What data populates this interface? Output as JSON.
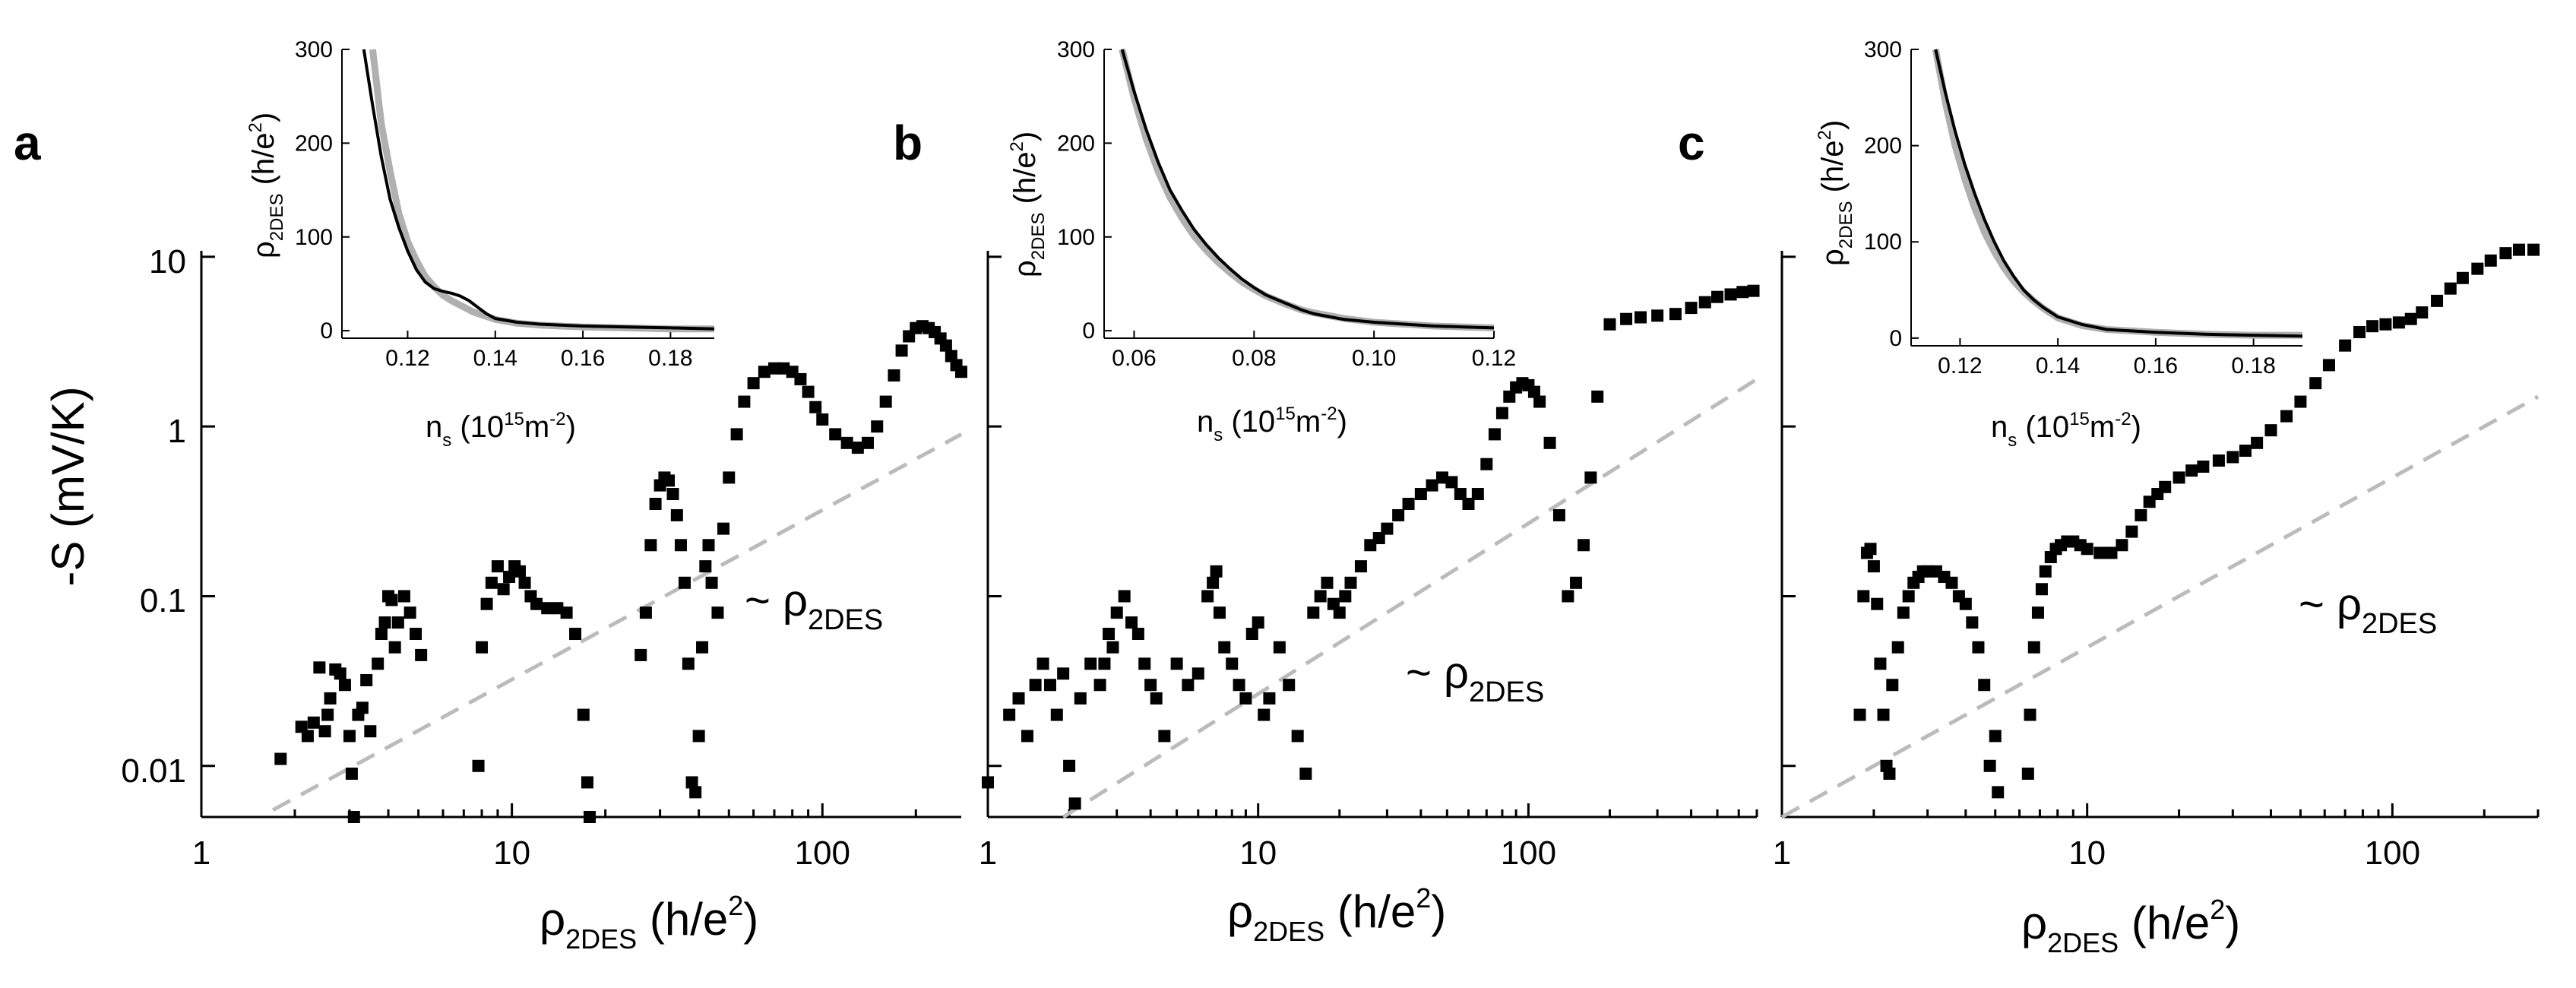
{
  "chart_data": [
    {
      "panel": "a",
      "type": "scatter",
      "xscale": "log",
      "yscale": "log",
      "xlim": [
        1,
        280
      ],
      "ylim": [
        0.005,
        15
      ],
      "xlabel": "ρ2DES (h/e²)",
      "ylabel": "-S (mV/K)",
      "xticks": [
        "1",
        "10",
        "100"
      ],
      "yticks": [
        "0.01",
        "0.1",
        "1",
        "10"
      ],
      "series": [
        {
          "name": "-S data",
          "marker": "square",
          "color": "#000000",
          "x": [
            1.8,
            2.1,
            2.2,
            2.3,
            2.4,
            2.5,
            2.55,
            2.6,
            2.7,
            2.8,
            2.9,
            3.0,
            3.05,
            3.1,
            3.2,
            3.3,
            3.4,
            3.5,
            3.7,
            3.8,
            3.9,
            4.0,
            4.1,
            4.2,
            4.3,
            4.5,
            4.7,
            4.9,
            5.1,
            7.8,
            8.0,
            8.3,
            8.6,
            9.0,
            9.4,
            9.8,
            10.2,
            10.6,
            11.0,
            11.5,
            12.0,
            13.0,
            14.0,
            15.0,
            16.0,
            17.0,
            17.5,
            17.8,
            26,
            27,
            28,
            29,
            30,
            31,
            32,
            33,
            34,
            35,
            36,
            37,
            38,
            39,
            40,
            41,
            42,
            43,
            44,
            46,
            48,
            50,
            53,
            56,
            60,
            65,
            70,
            75,
            80,
            85,
            90,
            95,
            100,
            110,
            120,
            130,
            140,
            150,
            160,
            170,
            180,
            190,
            200,
            210,
            220,
            230,
            240,
            250,
            260,
            270,
            280
          ],
          "y": [
            0.011,
            0.017,
            0.015,
            0.018,
            0.038,
            0.016,
            0.02,
            0.025,
            0.037,
            0.035,
            0.03,
            0.015,
            0.009,
            0.005,
            0.02,
            0.022,
            0.032,
            0.016,
            0.04,
            0.06,
            0.07,
            0.1,
            0.095,
            0.05,
            0.07,
            0.1,
            0.08,
            0.06,
            0.045,
            0.01,
            0.05,
            0.09,
            0.12,
            0.15,
            0.11,
            0.13,
            0.15,
            0.14,
            0.12,
            0.1,
            0.09,
            0.085,
            0.085,
            0.08,
            0.06,
            0.02,
            0.008,
            0.005,
            0.045,
            0.08,
            0.2,
            0.35,
            0.45,
            0.5,
            0.48,
            0.4,
            0.3,
            0.2,
            0.12,
            0.04,
            0.008,
            0.007,
            0.015,
            0.05,
            0.15,
            0.2,
            0.12,
            0.08,
            0.25,
            0.5,
            0.9,
            1.4,
            1.8,
            2.1,
            2.2,
            2.2,
            2.1,
            1.9,
            1.6,
            1.3,
            1.1,
            0.9,
            0.8,
            0.75,
            0.8,
            1.0,
            1.4,
            2.0,
            2.8,
            3.4,
            3.8,
            3.9,
            3.8,
            3.6,
            3.3,
            3.0,
            2.6,
            2.3,
            2.1
          ]
        },
        {
          "name": "~ ρ2DES",
          "style": "dashed",
          "color": "#bbbbbb",
          "x": [
            1.7,
            280
          ],
          "y": [
            0.0055,
            0.9
          ]
        }
      ],
      "annotation": "~ ρ2DES",
      "inset": {
        "xlabel": "ns (10¹⁵m⁻²)",
        "ylabel": "ρ2DES (h/e²)",
        "xlim": [
          0.105,
          0.19
        ],
        "ylim": [
          -8,
          300
        ],
        "xticks": [
          "0.12",
          "0.14",
          "0.16",
          "0.18"
        ],
        "yticks": [
          "0",
          "100",
          "200",
          "300"
        ],
        "data": {
          "x": [
            0.11,
            0.112,
            0.114,
            0.116,
            0.118,
            0.12,
            0.122,
            0.124,
            0.126,
            0.128,
            0.13,
            0.132,
            0.134,
            0.136,
            0.138,
            0.14,
            0.145,
            0.15,
            0.16,
            0.17,
            0.18,
            0.19
          ],
          "y": [
            300,
            240,
            185,
            140,
            110,
            85,
            65,
            52,
            45,
            42,
            40,
            37,
            32,
            25,
            18,
            13,
            9,
            7,
            5,
            4,
            3,
            2
          ]
        },
        "fit": {
          "x": [
            0.112,
            0.114,
            0.116,
            0.118,
            0.12,
            0.122,
            0.124,
            0.126,
            0.128,
            0.13,
            0.135,
            0.14,
            0.145,
            0.15,
            0.16,
            0.17,
            0.18,
            0.19
          ],
          "y": [
            300,
            220,
            170,
            125,
            95,
            75,
            58,
            47,
            38,
            32,
            20,
            12,
            8,
            6,
            4,
            3,
            2,
            2
          ]
        }
      }
    },
    {
      "panel": "b",
      "type": "scatter",
      "xscale": "log",
      "yscale": "log",
      "xlim": [
        1,
        700
      ],
      "ylim": [
        0.005,
        15
      ],
      "xlabel": "ρ2DES (h/e²)",
      "ylabel": "",
      "xticks": [
        "1",
        "10",
        "100"
      ],
      "yticks": [],
      "series": [
        {
          "name": "-S data",
          "marker": "square",
          "color": "#000000",
          "x": [
            1.0,
            1.2,
            1.3,
            1.4,
            1.5,
            1.6,
            1.7,
            1.8,
            1.9,
            2.0,
            2.1,
            2.2,
            2.4,
            2.6,
            2.7,
            2.8,
            2.9,
            3.0,
            3.2,
            3.4,
            3.6,
            3.8,
            4.0,
            4.2,
            4.5,
            5.0,
            5.5,
            6.0,
            6.5,
            6.8,
            7.0,
            7.2,
            7.5,
            8.0,
            8.5,
            9.0,
            9.5,
            10.0,
            10.5,
            11.0,
            12.0,
            13.0,
            14.0,
            15.0,
            16.0,
            17.0,
            18.0,
            19.0,
            20.0,
            21.0,
            22.0,
            24,
            26,
            28,
            30,
            33,
            36,
            40,
            44,
            48,
            52,
            56,
            60,
            65,
            70,
            75,
            80,
            85,
            90,
            95,
            100,
            105,
            110,
            120,
            130,
            140,
            150,
            160,
            170,
            180,
            200,
            230,
            260,
            300,
            350,
            400,
            450,
            500,
            560,
            620,
            680
          ],
          "y": [
            0.008,
            0.02,
            0.025,
            0.015,
            0.03,
            0.04,
            0.03,
            0.02,
            0.035,
            0.01,
            0.006,
            0.025,
            0.04,
            0.03,
            0.04,
            0.06,
            0.05,
            0.08,
            0.1,
            0.07,
            0.06,
            0.04,
            0.03,
            0.025,
            0.015,
            0.04,
            0.03,
            0.035,
            0.1,
            0.12,
            0.14,
            0.08,
            0.05,
            0.04,
            0.03,
            0.025,
            0.06,
            0.07,
            0.02,
            0.025,
            0.05,
            0.03,
            0.015,
            0.009,
            0.08,
            0.1,
            0.12,
            0.09,
            0.08,
            0.1,
            0.12,
            0.15,
            0.2,
            0.22,
            0.25,
            0.3,
            0.35,
            0.4,
            0.45,
            0.5,
            0.47,
            0.4,
            0.35,
            0.4,
            0.6,
            0.9,
            1.2,
            1.5,
            1.7,
            1.8,
            1.75,
            1.6,
            1.4,
            0.8,
            0.3,
            0.1,
            0.12,
            0.2,
            0.5,
            1.5,
            4.0,
            4.3,
            4.4,
            4.5,
            4.6,
            5.0,
            5.4,
            5.8,
            6.0,
            6.2,
            6.3
          ]
        },
        {
          "name": "~ ρ2DES",
          "style": "dashed",
          "color": "#bbbbbb",
          "x": [
            1.9,
            700
          ],
          "y": [
            0.005,
            1.9
          ]
        }
      ],
      "annotation": "~ ρ2DES",
      "inset": {
        "xlabel": "ns (10¹⁵m⁻²)",
        "ylabel": "ρ2DES (h/e²)",
        "xlim": [
          0.055,
          0.12
        ],
        "ylim": [
          -8,
          300
        ],
        "xticks": [
          "0.06",
          "0.08",
          "0.10",
          "0.12"
        ],
        "yticks": [
          "0",
          "100",
          "200",
          "300"
        ],
        "data": {
          "x": [
            0.058,
            0.06,
            0.062,
            0.064,
            0.066,
            0.068,
            0.07,
            0.072,
            0.074,
            0.076,
            0.078,
            0.08,
            0.082,
            0.085,
            0.088,
            0.09,
            0.095,
            0.1,
            0.105,
            0.11,
            0.115,
            0.12
          ],
          "y": [
            300,
            255,
            215,
            180,
            150,
            128,
            108,
            92,
            78,
            66,
            55,
            46,
            38,
            30,
            22,
            18,
            12,
            9,
            7,
            5,
            4,
            3
          ]
        },
        "fit": {
          "x": [
            0.058,
            0.06,
            0.062,
            0.064,
            0.066,
            0.068,
            0.07,
            0.072,
            0.074,
            0.076,
            0.078,
            0.08,
            0.082,
            0.085,
            0.088,
            0.09,
            0.095,
            0.1,
            0.105,
            0.11,
            0.115,
            0.12
          ],
          "y": [
            300,
            248,
            205,
            170,
            142,
            120,
            101,
            86,
            73,
            62,
            52,
            44,
            37,
            29,
            22,
            19,
            13,
            9,
            7,
            5,
            4,
            3
          ]
        }
      }
    },
    {
      "panel": "c",
      "type": "scatter",
      "xscale": "log",
      "yscale": "log",
      "xlim": [
        1,
        300
      ],
      "ylim": [
        0.005,
        15
      ],
      "xlabel": "ρ2DES (h/e²)",
      "ylabel": "",
      "xticks": [
        "1",
        "10",
        "100"
      ],
      "yticks": [],
      "series": [
        {
          "name": "-S data",
          "marker": "square",
          "color": "#000000",
          "x": [
            1.8,
            1.85,
            1.9,
            1.95,
            2.0,
            2.05,
            2.1,
            2.15,
            2.2,
            2.25,
            2.3,
            2.4,
            2.5,
            2.6,
            2.7,
            2.8,
            2.9,
            3.0,
            3.2,
            3.4,
            3.6,
            3.8,
            4.0,
            4.2,
            4.4,
            4.6,
            4.8,
            5.0,
            5.1,
            6.4,
            6.5,
            6.7,
            6.9,
            7.1,
            7.3,
            7.6,
            7.9,
            8.2,
            8.6,
            9.0,
            9.5,
            10.0,
            11.0,
            12.0,
            13.0,
            14.0,
            15.0,
            16.0,
            17.0,
            18.0,
            20,
            22,
            24,
            27,
            30,
            33,
            36,
            40,
            45,
            50,
            56,
            62,
            70,
            78,
            86,
            95,
            105,
            115,
            125,
            140,
            155,
            170,
            190,
            210,
            235,
            260,
            290
          ],
          "y": [
            0.02,
            0.1,
            0.18,
            0.19,
            0.15,
            0.09,
            0.04,
            0.02,
            0.01,
            0.009,
            0.03,
            0.05,
            0.08,
            0.1,
            0.12,
            0.13,
            0.14,
            0.14,
            0.14,
            0.13,
            0.12,
            0.1,
            0.09,
            0.07,
            0.05,
            0.03,
            0.01,
            0.015,
            0.007,
            0.009,
            0.02,
            0.05,
            0.08,
            0.11,
            0.14,
            0.17,
            0.19,
            0.2,
            0.21,
            0.21,
            0.2,
            0.19,
            0.18,
            0.18,
            0.2,
            0.24,
            0.3,
            0.36,
            0.4,
            0.44,
            0.5,
            0.55,
            0.58,
            0.63,
            0.66,
            0.72,
            0.8,
            0.95,
            1.15,
            1.4,
            1.8,
            2.3,
            3.0,
            3.6,
            3.9,
            4.0,
            4.1,
            4.3,
            4.7,
            5.5,
            6.5,
            7.5,
            8.5,
            9.5,
            10.5,
            11.0,
            11.0
          ]
        },
        {
          "name": "~ ρ2DES",
          "style": "dashed",
          "color": "#bbbbbb",
          "x": [
            1.0,
            300
          ],
          "y": [
            0.005,
            1.5
          ]
        }
      ],
      "annotation": "~ ρ2DES",
      "inset": {
        "xlabel": "ns (10¹⁵m⁻²)",
        "ylabel": "ρ2DES (h/e²)",
        "xlim": [
          0.11,
          0.19
        ],
        "ylim": [
          -8,
          300
        ],
        "xticks": [
          "0.12",
          "0.14",
          "0.16",
          "0.18"
        ],
        "yticks": [
          "0",
          "100",
          "200",
          "300"
        ],
        "data": {
          "x": [
            0.115,
            0.117,
            0.119,
            0.121,
            0.123,
            0.125,
            0.127,
            0.129,
            0.131,
            0.133,
            0.135,
            0.137,
            0.14,
            0.145,
            0.15,
            0.16,
            0.17,
            0.18,
            0.19
          ],
          "y": [
            300,
            255,
            215,
            180,
            150,
            123,
            100,
            80,
            64,
            50,
            40,
            32,
            22,
            14,
            9,
            6,
            4,
            3,
            2
          ]
        },
        "fit": {
          "x": [
            0.115,
            0.117,
            0.119,
            0.121,
            0.123,
            0.125,
            0.127,
            0.129,
            0.131,
            0.133,
            0.135,
            0.137,
            0.14,
            0.145,
            0.15,
            0.16,
            0.17,
            0.18,
            0.19
          ],
          "y": [
            300,
            245,
            200,
            165,
            135,
            110,
            90,
            73,
            59,
            48,
            39,
            31,
            21,
            13,
            9,
            6,
            4,
            3,
            3
          ]
        }
      }
    }
  ]
}
